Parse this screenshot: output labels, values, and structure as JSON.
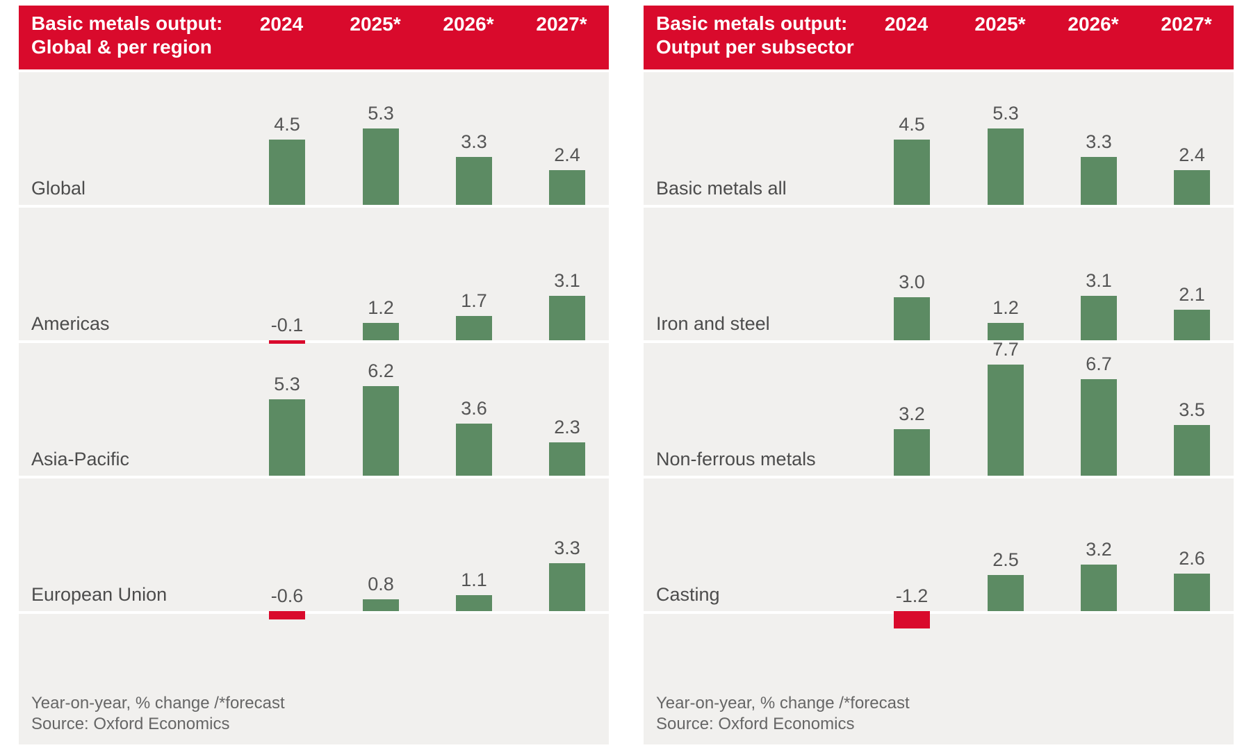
{
  "colors": {
    "header_bg": "#d90a2c",
    "header_text": "#ffffff",
    "bar_positive": "#5c8b63",
    "bar_negative": "#d90a2c",
    "panel_bg": "#f1f0ee",
    "row_label_text": "#4c4c4c",
    "value_label_text": "#555555",
    "footnote_text": "#666666"
  },
  "chart_data": [
    {
      "type": "bar",
      "title": "Basic metals output:",
      "subtitle": "Global & per region",
      "categories": [
        "2024",
        "2025*",
        "2026*",
        "2027*"
      ],
      "series": [
        {
          "name": "Global",
          "values": [
            4.5,
            5.3,
            3.3,
            2.4
          ]
        },
        {
          "name": "Americas",
          "values": [
            -0.1,
            1.2,
            1.7,
            3.1
          ]
        },
        {
          "name": "Asia-Pacific",
          "values": [
            5.3,
            6.2,
            3.6,
            2.3
          ]
        },
        {
          "name": "European Union",
          "values": [
            -0.6,
            0.8,
            1.1,
            3.3
          ]
        }
      ],
      "value_format": "one_decimal",
      "value_labels": true,
      "legend": false,
      "grid": false,
      "note": "Year-on-year, % change /*forecast",
      "source": "Source: Oxford Economics"
    },
    {
      "type": "bar",
      "title": "Basic metals output:",
      "subtitle": "Output per subsector",
      "categories": [
        "2024",
        "2025*",
        "2026*",
        "2027*"
      ],
      "series": [
        {
          "name": "Basic metals all",
          "values": [
            4.5,
            5.3,
            3.3,
            2.4
          ]
        },
        {
          "name": "Iron and steel",
          "values": [
            3.0,
            1.2,
            3.1,
            2.1
          ]
        },
        {
          "name": "Non-ferrous metals",
          "values": [
            3.2,
            7.7,
            6.7,
            3.5
          ]
        },
        {
          "name": "Casting",
          "values": [
            -1.2,
            2.5,
            3.2,
            2.6
          ]
        }
      ],
      "value_format": "one_decimal",
      "value_labels": true,
      "legend": false,
      "grid": false,
      "note": "Year-on-year, % change /*forecast",
      "source": "Source: Oxford Economics"
    }
  ]
}
